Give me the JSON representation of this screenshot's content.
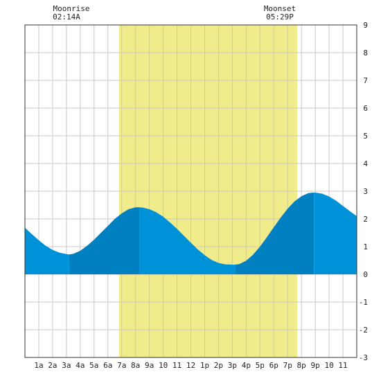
{
  "moonrise": {
    "label": "Moonrise",
    "time": "02:14A"
  },
  "moonset": {
    "label": "Moonset",
    "time": "05:29P"
  },
  "chart_data": {
    "type": "area",
    "title": "",
    "xlabel": "",
    "ylabel": "",
    "xlim": [
      0,
      24
    ],
    "ylim": [
      -3,
      9
    ],
    "grid": true,
    "x_tick_labels": [
      "1a",
      "2a",
      "3a",
      "4a",
      "5a",
      "6a",
      "7a",
      "8a",
      "9a",
      "10",
      "11",
      "12",
      "1p",
      "2p",
      "3p",
      "4p",
      "5p",
      "6p",
      "7p",
      "8p",
      "9p",
      "10",
      "11"
    ],
    "y_tick_labels": [
      "9",
      "8",
      "7",
      "6",
      "5",
      "4",
      "3",
      "2",
      "1",
      "0",
      "-1",
      "-2",
      "-3"
    ],
    "daylight": {
      "start_hour": 6.8,
      "end_hour": 19.7
    },
    "tide_extremes": [
      {
        "hour": 3.2,
        "height": 0.72,
        "type": "low"
      },
      {
        "hour": 8.3,
        "height": 2.42,
        "type": "high"
      },
      {
        "hour": 15.2,
        "height": 0.35,
        "type": "low"
      },
      {
        "hour": 20.9,
        "height": 2.95,
        "type": "high"
      }
    ],
    "series": [
      {
        "x": [
          0,
          0.5,
          1,
          1.5,
          2,
          2.5,
          3,
          3.2,
          3.5,
          4,
          4.5,
          5,
          5.5,
          6,
          6.5,
          7,
          7.5,
          8,
          8.3,
          8.5,
          9,
          9.5,
          10,
          10.5,
          11,
          11.5,
          12,
          12.5,
          13,
          13.5,
          14,
          14.5,
          15,
          15.2,
          15.5,
          16,
          16.5,
          17,
          17.5,
          18,
          18.5,
          19,
          19.5,
          20,
          20.5,
          20.9,
          21,
          21.5,
          22,
          22.5,
          23,
          23.5,
          24
        ],
        "y": [
          1.68,
          1.45,
          1.23,
          1.03,
          0.88,
          0.78,
          0.73,
          0.72,
          0.74,
          0.85,
          1.03,
          1.25,
          1.5,
          1.75,
          2,
          2.2,
          2.35,
          2.42,
          2.42,
          2.41,
          2.35,
          2.24,
          2.08,
          1.87,
          1.64,
          1.39,
          1.14,
          0.9,
          0.69,
          0.52,
          0.41,
          0.36,
          0.35,
          0.35,
          0.37,
          0.49,
          0.71,
          1.0,
          1.34,
          1.7,
          2.05,
          2.37,
          2.63,
          2.82,
          2.93,
          2.95,
          2.95,
          2.91,
          2.81,
          2.66,
          2.47,
          2.28,
          2.1
        ]
      }
    ],
    "colors": {
      "daylight": "#f0ec8c",
      "tide": "#0092d8",
      "tide_rising": "#0080c0",
      "grid": "#c8c8c8",
      "axis": "#333333"
    }
  }
}
